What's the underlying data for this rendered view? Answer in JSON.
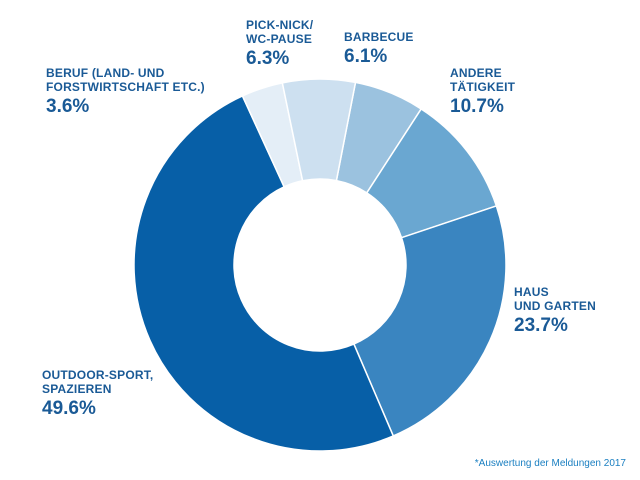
{
  "chart_data": {
    "type": "pie",
    "variant": "donut",
    "categories": [
      "Barbecue",
      "Andere\nTätigkeit",
      "Haus\nund Garten",
      "Outdoor-Sport,\nSpazieren",
      "Beruf (Land- und\nForstwirtschaft etc.)",
      "Pick-Nick/\nWC-Pause"
    ],
    "values": [
      6.1,
      10.7,
      23.7,
      49.6,
      3.6,
      6.3
    ],
    "value_labels": [
      "6.1%",
      "10.7%",
      "23.7%",
      "49.6%",
      "3.6%",
      "6.3%"
    ],
    "colors": [
      "#9bc2df",
      "#6aa7d1",
      "#3a85c0",
      "#075fa7",
      "#e4eef7",
      "#cde0f0"
    ],
    "label_color": "#1a5a96",
    "footnote": "*Auswertung der Meldungen 2017"
  }
}
